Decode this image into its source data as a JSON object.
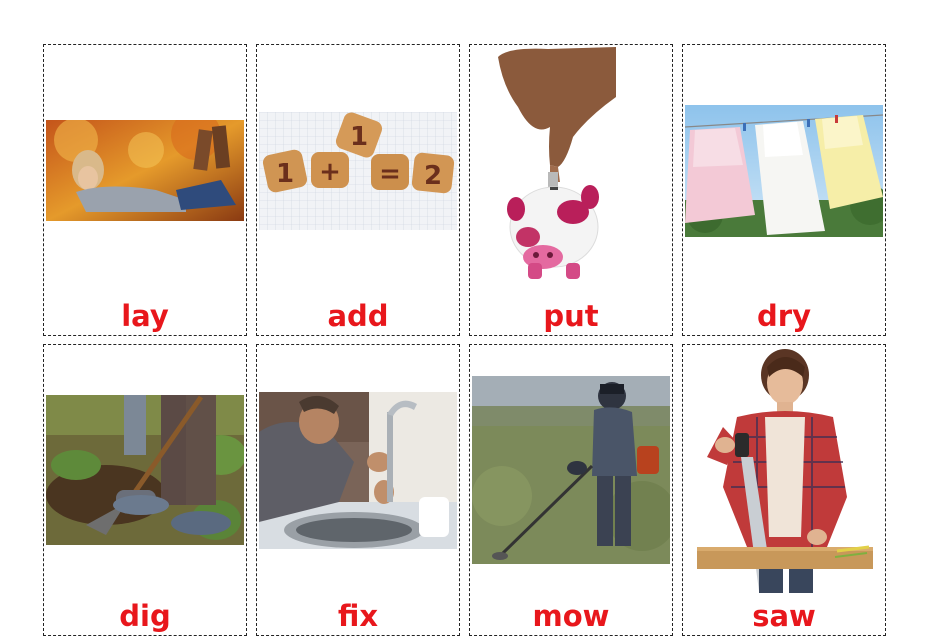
{
  "cards": [
    {
      "word": "lay",
      "image": "woman-lying-in-autumn-leaves"
    },
    {
      "word": "add",
      "image": "biscuit-numbers-1-plus-1-equals-2"
    },
    {
      "word": "put",
      "image": "hand-putting-coin-in-piggy-bank"
    },
    {
      "word": "dry",
      "image": "dresses-drying-on-clothesline"
    },
    {
      "word": "dig",
      "image": "person-digging-with-shovel"
    },
    {
      "word": "fix",
      "image": "plumber-fixing-kitchen-faucet"
    },
    {
      "word": "mow",
      "image": "man-with-string-trimmer"
    },
    {
      "word": "saw",
      "image": "woman-sawing-wooden-plank"
    }
  ],
  "biscuits": [
    "1",
    "+",
    "1",
    "=",
    "2"
  ]
}
